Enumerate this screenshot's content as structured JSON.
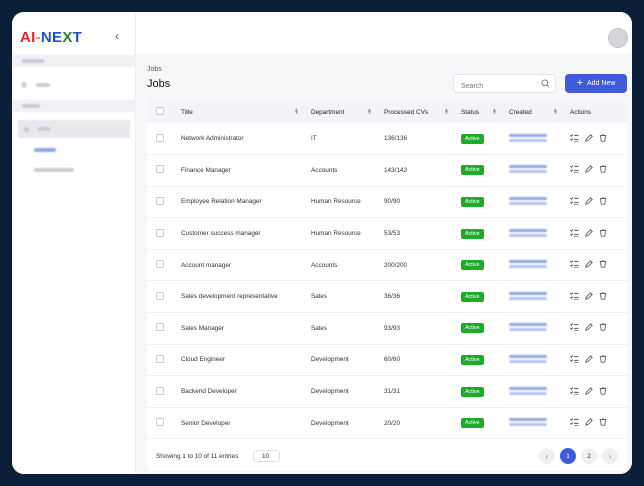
{
  "app": {
    "logo_parts": [
      "AI",
      "-",
      "NE",
      "X",
      "T"
    ]
  },
  "sidebar": {
    "collapse_icon": "chevron-left-icon"
  },
  "header": {
    "breadcrumb": "Jobs",
    "title": "Jobs"
  },
  "search": {
    "placeholder": "Search"
  },
  "toolbar": {
    "add_label": "Add New",
    "add_icon": "plus-icon"
  },
  "table": {
    "columns": [
      "Title",
      "Department",
      "Processed CVs",
      "Status",
      "Created",
      "Actions"
    ],
    "rows": [
      {
        "title": "Network Administrator",
        "department": "IT",
        "processed": "136/136",
        "status": "Active"
      },
      {
        "title": "Finance Manager",
        "department": "Accounts",
        "processed": "143/143",
        "status": "Active"
      },
      {
        "title": "Employee Relation Manager",
        "department": "Human Resource",
        "processed": "90/90",
        "status": "Active"
      },
      {
        "title": "Customer success manager",
        "department": "Human Resource",
        "processed": "53/53",
        "status": "Active"
      },
      {
        "title": "Account manager",
        "department": "Accounts",
        "processed": "200/200",
        "status": "Active"
      },
      {
        "title": "Sales development representative",
        "department": "Sales",
        "processed": "36/36",
        "status": "Active"
      },
      {
        "title": "Sales Manager",
        "department": "Sales",
        "processed": "93/93",
        "status": "Active"
      },
      {
        "title": "Cloud Engineer",
        "department": "Development",
        "processed": "60/60",
        "status": "Active"
      },
      {
        "title": "Backend Developer",
        "department": "Development",
        "processed": "31/31",
        "status": "Active"
      },
      {
        "title": "Senior Developer",
        "department": "Development",
        "processed": "20/20",
        "status": "Active"
      }
    ]
  },
  "footer": {
    "showing": "Showing 1 to 10 of 11 entries",
    "per_page": "10"
  },
  "pagination": {
    "prev": "‹",
    "pages": [
      "1",
      "2"
    ],
    "next": "›"
  },
  "colors": {
    "accent": "#3f5bd8",
    "status_active": "#1faa2c"
  }
}
